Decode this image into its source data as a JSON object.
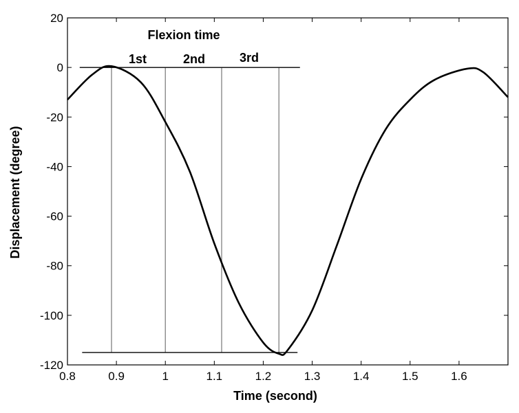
{
  "chart_data": {
    "type": "line",
    "title": "",
    "xlabel": "Time (second)",
    "ylabel": "Displacement (degree)",
    "xlim": [
      0.8,
      1.7
    ],
    "ylim": [
      -120,
      20
    ],
    "xticks": [
      0.8,
      0.9,
      1,
      1.1,
      1.2,
      1.3,
      1.4,
      1.5,
      1.6
    ],
    "xtick_labels": [
      "0.8",
      "0.9",
      "1",
      "1.1",
      "1.2",
      "1.3",
      "1.4",
      "1.5",
      "1.6"
    ],
    "yticks": [
      20,
      0,
      -20,
      -40,
      -60,
      -80,
      -100,
      -120
    ],
    "ytick_labels": [
      "20",
      "0",
      "-20",
      "-40",
      "-60",
      "-80",
      "-100",
      "-120"
    ],
    "grid": false,
    "series": [
      {
        "name": "displacement",
        "color": "#000000",
        "x": [
          0.8,
          0.85,
          0.89,
          0.95,
          1.0,
          1.05,
          1.1,
          1.15,
          1.2,
          1.232,
          1.25,
          1.3,
          1.35,
          1.4,
          1.45,
          1.5,
          1.55,
          1.617,
          1.65,
          1.7
        ],
        "y": [
          -13,
          -3,
          0.5,
          -6,
          -22,
          -42,
          -71,
          -95,
          -111,
          -115.5,
          -114,
          -98,
          -72,
          -45,
          -25,
          -13,
          -5,
          -0.5,
          -2,
          -12
        ]
      }
    ],
    "annotations": {
      "title_text": "Flexion time",
      "segment_labels": [
        "1st",
        "2nd",
        "3rd"
      ],
      "vertical_lines_x": [
        0.89,
        1.0,
        1.115,
        1.232
      ],
      "horizontal_lines": [
        {
          "y": 0,
          "x": [
            0.825,
            1.275
          ]
        },
        {
          "y": -115,
          "x": [
            0.83,
            1.27
          ]
        }
      ],
      "line_color": "#808080"
    }
  }
}
